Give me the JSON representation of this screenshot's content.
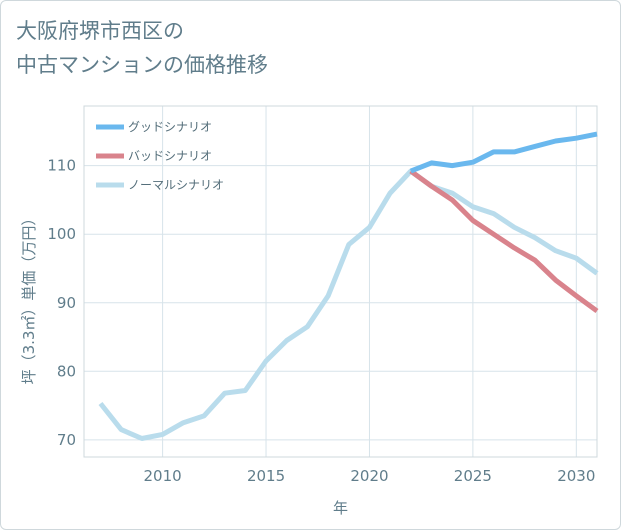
{
  "chart_data": {
    "type": "line",
    "title": [
      "大阪府堺市西区の",
      "中古マンションの価格推移"
    ],
    "xlabel": "年",
    "ylabel": "坪（3.3㎡）単価（万円）",
    "xlim": [
      2006.2,
      2031
    ],
    "ylim": [
      67.5,
      118.7
    ],
    "x_ticks": [
      2010,
      2015,
      2020,
      2025,
      2030
    ],
    "y_ticks": [
      70,
      80,
      90,
      100,
      110
    ],
    "grid": true,
    "legend_position": "top-left",
    "series": [
      {
        "name": "グッドシナリオ",
        "color": "#6ab8ee",
        "x": [
          2022,
          2023,
          2024,
          2025,
          2026,
          2027,
          2028,
          2029,
          2030,
          2031
        ],
        "y": [
          109.2,
          110.4,
          110,
          110.5,
          112,
          112,
          112.8,
          113.6,
          114,
          114.6
        ]
      },
      {
        "name": "バッドシナリオ",
        "color": "#d9838c",
        "x": [
          2022,
          2023,
          2024,
          2025,
          2026,
          2027,
          2028,
          2029,
          2030,
          2031
        ],
        "y": [
          109.2,
          107,
          105,
          102,
          100,
          98,
          96.2,
          93.3,
          91,
          88.8
        ]
      },
      {
        "name": "ノーマルシナリオ",
        "color": "#b9dcec",
        "x": [
          2007,
          2008,
          2009,
          2010,
          2011,
          2012,
          2013,
          2014,
          2015,
          2016,
          2017,
          2018,
          2019,
          2020,
          2021,
          2022,
          2023,
          2024,
          2025,
          2026,
          2027,
          2028,
          2029,
          2030,
          2031
        ],
        "y": [
          75.3,
          71.5,
          70.2,
          70.8,
          72.5,
          73.5,
          76.8,
          77.2,
          81.5,
          84.5,
          86.5,
          91,
          98.5,
          101,
          106,
          109.2,
          107,
          106,
          104,
          103,
          101,
          99.5,
          97.6,
          96.5,
          94.3
        ]
      }
    ]
  }
}
